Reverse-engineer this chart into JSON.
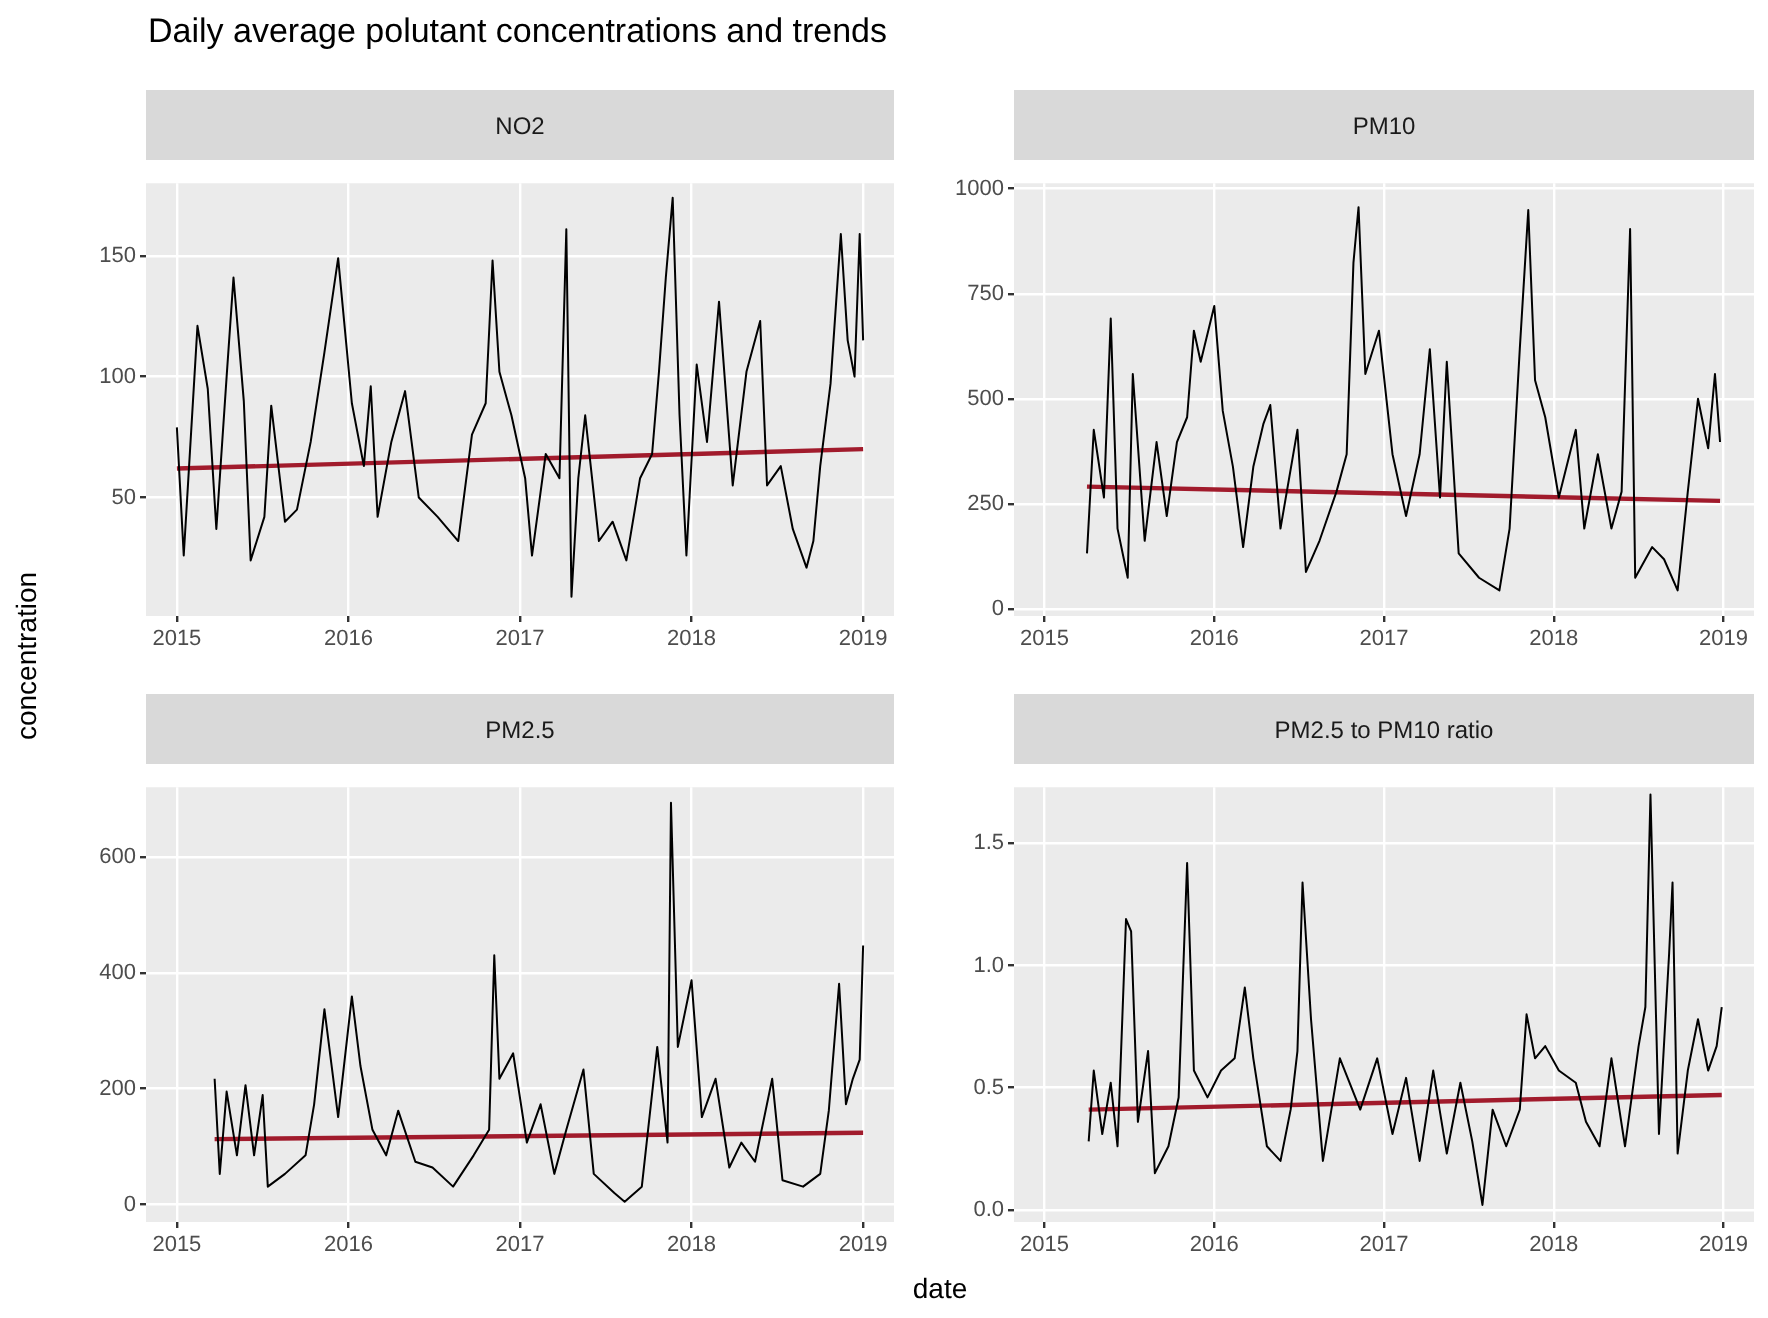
{
  "chart_data": [
    {
      "type": "line",
      "title": "NO2",
      "annotations": [
        "Daily average polutant concentrations and trends"
      ],
      "xlim": [
        2014.82,
        2019.18
      ],
      "xticks": [
        2015,
        2016,
        2017,
        2018,
        2019
      ],
      "ylim": [
        1,
        180
      ],
      "yticks": [
        50,
        100,
        150
      ],
      "grid": true,
      "series": [
        {
          "color": "#000000",
          "x": [
            2015.0,
            2015.04,
            2015.12,
            2015.18,
            2015.23,
            2015.29,
            2015.33,
            2015.39,
            2015.43,
            2015.51,
            2015.55,
            2015.63,
            2015.7,
            2015.78,
            2015.86,
            2015.94,
            2016.02,
            2016.09,
            2016.13,
            2016.17,
            2016.25,
            2016.33,
            2016.41,
            2016.52,
            2016.64,
            2016.72,
            2016.8,
            2016.84,
            2016.88,
            2016.95,
            2017.03,
            2017.07,
            2017.15,
            2017.23,
            2017.27,
            2017.3,
            2017.34,
            2017.38,
            2017.46,
            2017.54,
            2017.62,
            2017.7,
            2017.77,
            2017.81,
            2017.85,
            2017.89,
            2017.93,
            2017.97,
            2018.03,
            2018.09,
            2018.16,
            2018.24,
            2018.32,
            2018.4,
            2018.44,
            2018.52,
            2018.59,
            2018.67,
            2018.71,
            2018.75,
            2018.81,
            2018.87,
            2018.91,
            2018.95,
            2018.98,
            2019.0
          ],
          "values": [
            79,
            26,
            121,
            95,
            37,
            100,
            141,
            90,
            24,
            42,
            88,
            40,
            45,
            73,
            110,
            149,
            89,
            63,
            96,
            42,
            73,
            94,
            50,
            42,
            32,
            76,
            89,
            148,
            102,
            84,
            58,
            26,
            68,
            58,
            161,
            9,
            58,
            84,
            32,
            40,
            24,
            58,
            68,
            102,
            141,
            174,
            84,
            26,
            105,
            73,
            131,
            55,
            102,
            123,
            55,
            63,
            37,
            21,
            32,
            63,
            97,
            159,
            115,
            100,
            159,
            115
          ]
        },
        {
          "type": "line",
          "color": "#a11b2c",
          "x": [
            2015.0,
            2019.0
          ],
          "values": [
            62,
            70
          ]
        }
      ]
    },
    {
      "type": "line",
      "title": "PM10",
      "xlim": [
        2014.82,
        2019.18
      ],
      "xticks": [
        2015,
        2016,
        2017,
        2018,
        2019
      ],
      "ylim": [
        -17,
        1013
      ],
      "yticks": [
        0,
        250,
        500,
        750,
        1000
      ],
      "grid": true,
      "series": [
        {
          "color": "#000000",
          "x": [
            2015.25,
            2015.29,
            2015.35,
            2015.39,
            2015.43,
            2015.49,
            2015.52,
            2015.59,
            2015.66,
            2015.72,
            2015.78,
            2015.84,
            2015.88,
            2015.92,
            2016.0,
            2016.05,
            2016.11,
            2016.17,
            2016.23,
            2016.29,
            2016.33,
            2016.39,
            2016.49,
            2016.54,
            2016.62,
            2016.72,
            2016.78,
            2016.82,
            2016.85,
            2016.89,
            2016.97,
            2017.05,
            2017.13,
            2017.21,
            2017.27,
            2017.33,
            2017.37,
            2017.44,
            2017.56,
            2017.68,
            2017.74,
            2017.8,
            2017.85,
            2017.89,
            2017.95,
            2018.03,
            2018.13,
            2018.18,
            2018.26,
            2018.34,
            2018.4,
            2018.45,
            2018.48,
            2018.58,
            2018.65,
            2018.73,
            2018.79,
            2018.85,
            2018.91,
            2018.95,
            2018.98
          ],
          "values": [
            132,
            426,
            265,
            691,
            191,
            74,
            559,
            162,
            397,
            221,
            397,
            456,
            662,
            588,
            721,
            471,
            338,
            147,
            338,
            441,
            485,
            191,
            426,
            88,
            162,
            279,
            368,
            824,
            956,
            559,
            662,
            368,
            221,
            368,
            618,
            265,
            588,
            132,
            74,
            44,
            191,
            618,
            949,
            544,
            456,
            265,
            426,
            191,
            368,
            191,
            279,
            904,
            74,
            147,
            118,
            44,
            279,
            500,
            382,
            559,
            397
          ]
        },
        {
          "type": "line",
          "color": "#a11b2c",
          "x": [
            2015.25,
            2018.98
          ],
          "values": [
            291,
            257
          ]
        }
      ]
    },
    {
      "type": "line",
      "title": "PM2.5",
      "ylabel": "concentration",
      "xlim": [
        2014.82,
        2019.18
      ],
      "xticks": [
        2015,
        2016,
        2017,
        2018,
        2019
      ],
      "ylim": [
        -30,
        720
      ],
      "yticks": [
        0,
        200,
        400,
        600
      ],
      "grid": true,
      "series": [
        {
          "color": "#000000",
          "x": [
            2015.22,
            2015.25,
            2015.29,
            2015.35,
            2015.4,
            2015.45,
            2015.5,
            2015.53,
            2015.63,
            2015.75,
            2015.8,
            2015.86,
            2015.94,
            2016.02,
            2016.07,
            2016.14,
            2016.22,
            2016.29,
            2016.39,
            2016.49,
            2016.61,
            2016.73,
            2016.82,
            2016.85,
            2016.88,
            2016.96,
            2017.04,
            2017.12,
            2017.2,
            2017.27,
            2017.37,
            2017.43,
            2017.55,
            2017.61,
            2017.71,
            2017.8,
            2017.86,
            2017.88,
            2017.92,
            2018.0,
            2018.06,
            2018.14,
            2018.22,
            2018.29,
            2018.37,
            2018.47,
            2018.53,
            2018.65,
            2018.75,
            2018.8,
            2018.86,
            2018.9,
            2018.94,
            2018.98,
            2019.0
          ],
          "values": [
            217,
            53,
            195,
            85,
            206,
            85,
            189,
            31,
            53,
            85,
            173,
            337,
            151,
            359,
            239,
            129,
            85,
            162,
            74,
            64,
            31,
            85,
            129,
            430,
            217,
            261,
            107,
            173,
            53,
            129,
            233,
            53,
            20,
            5,
            31,
            272,
            107,
            693,
            272,
            387,
            151,
            217,
            64,
            107,
            74,
            217,
            42,
            31,
            53,
            162,
            381,
            173,
            217,
            250,
            447
          ]
        },
        {
          "type": "line",
          "color": "#a11b2c",
          "x": [
            2015.22,
            2019.0
          ],
          "values": [
            113,
            124
          ]
        }
      ]
    },
    {
      "type": "line",
      "title": "PM2.5 to PM10 ratio",
      "xlabel": "date",
      "xlim": [
        2014.82,
        2019.18
      ],
      "xticks": [
        2015,
        2016,
        2017,
        2018,
        2019
      ],
      "ylim": [
        -0.05,
        1.73
      ],
      "yticks": [
        {
          "value": 0,
          "label": "0.0"
        },
        {
          "value": 0.5,
          "label": "0.5"
        },
        {
          "value": 1,
          "label": "1.0"
        },
        {
          "value": 1.5,
          "label": "1.5"
        }
      ],
      "grid": true,
      "series": [
        {
          "color": "#000000",
          "x": [
            2015.26,
            2015.29,
            2015.34,
            2015.39,
            2015.43,
            2015.48,
            2015.51,
            2015.55,
            2015.61,
            2015.65,
            2015.73,
            2015.79,
            2015.84,
            2015.88,
            2015.96,
            2016.04,
            2016.12,
            2016.18,
            2016.23,
            2016.31,
            2016.39,
            2016.45,
            2016.49,
            2016.52,
            2016.57,
            2016.64,
            2016.74,
            2016.86,
            2016.96,
            2017.05,
            2017.13,
            2017.21,
            2017.29,
            2017.37,
            2017.45,
            2017.52,
            2017.58,
            2017.64,
            2017.72,
            2017.8,
            2017.84,
            2017.89,
            2017.95,
            2018.03,
            2018.13,
            2018.19,
            2018.27,
            2018.34,
            2018.42,
            2018.5,
            2018.54,
            2018.57,
            2018.62,
            2018.68,
            2018.7,
            2018.73,
            2018.79,
            2018.85,
            2018.91,
            2018.96,
            2018.99
          ],
          "values": [
            0.28,
            0.57,
            0.31,
            0.52,
            0.26,
            1.19,
            1.14,
            0.36,
            0.65,
            0.15,
            0.26,
            0.46,
            1.42,
            0.57,
            0.46,
            0.57,
            0.62,
            0.91,
            0.62,
            0.26,
            0.2,
            0.41,
            0.65,
            1.34,
            0.78,
            0.2,
            0.62,
            0.41,
            0.62,
            0.31,
            0.54,
            0.2,
            0.57,
            0.23,
            0.52,
            0.28,
            0.02,
            0.41,
            0.26,
            0.41,
            0.8,
            0.62,
            0.67,
            0.57,
            0.52,
            0.36,
            0.26,
            0.62,
            0.26,
            0.67,
            0.83,
            1.7,
            0.31,
            1.05,
            1.34,
            0.23,
            0.57,
            0.78,
            0.57,
            0.67,
            0.83
          ]
        },
        {
          "type": "line",
          "color": "#a11b2c",
          "x": [
            2015.26,
            2018.99
          ],
          "values": [
            0.41,
            0.47
          ]
        }
      ]
    }
  ]
}
